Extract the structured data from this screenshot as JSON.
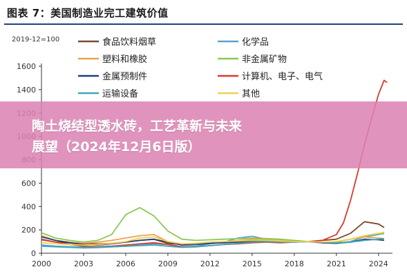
{
  "header": {
    "title": "图表 7：美国制造业完工建筑价值"
  },
  "banner": {
    "line1": "陶土烧结型透水砖，工艺革新与未来",
    "line2": "展望（2024年12月6日版）"
  },
  "chart_data": {
    "type": "line",
    "title": "图表 7：美国制造业完工建筑价值",
    "ylabel": "2019-12=100",
    "xlabel": "",
    "xlim": [
      2000,
      2024.6
    ],
    "ylim": [
      0,
      1600
    ],
    "x_ticks": [
      2000,
      2003,
      2006,
      2009,
      2012,
      2015,
      2018,
      2021,
      2024
    ],
    "y_ticks": [
      0,
      200,
      400,
      600,
      800,
      1000,
      1200,
      1400,
      1600
    ],
    "grid": false,
    "legend_position": "top",
    "colors": {
      "axis": "#333333",
      "banner": "#db82b2"
    },
    "series": [
      {
        "name": "食品饮料烟草",
        "color": "#7a4a2a",
        "points": [
          [
            2000,
            120
          ],
          [
            2001,
            95
          ],
          [
            2002,
            90
          ],
          [
            2003,
            85
          ],
          [
            2004,
            80
          ],
          [
            2005,
            85
          ],
          [
            2006,
            95
          ],
          [
            2007,
            110
          ],
          [
            2008,
            120
          ],
          [
            2009,
            85
          ],
          [
            2010,
            75
          ],
          [
            2011,
            80
          ],
          [
            2012,
            90
          ],
          [
            2013,
            95
          ],
          [
            2014,
            100
          ],
          [
            2015,
            110
          ],
          [
            2016,
            115
          ],
          [
            2017,
            105
          ],
          [
            2018,
            100
          ],
          [
            2019,
            100
          ],
          [
            2020,
            110
          ],
          [
            2021,
            120
          ],
          [
            2022,
            170
          ],
          [
            2023,
            270
          ],
          [
            2024,
            250
          ],
          [
            2024.4,
            220
          ]
        ]
      },
      {
        "name": "化学品",
        "color": "#5aa0d8",
        "points": [
          [
            2000,
            60
          ],
          [
            2001,
            55
          ],
          [
            2002,
            50
          ],
          [
            2003,
            45
          ],
          [
            2004,
            48
          ],
          [
            2005,
            55
          ],
          [
            2006,
            60
          ],
          [
            2007,
            70
          ],
          [
            2008,
            80
          ],
          [
            2009,
            75
          ],
          [
            2010,
            55
          ],
          [
            2011,
            60
          ],
          [
            2012,
            80
          ],
          [
            2013,
            95
          ],
          [
            2014,
            130
          ],
          [
            2015,
            145
          ],
          [
            2016,
            120
          ],
          [
            2017,
            100
          ],
          [
            2018,
            95
          ],
          [
            2019,
            100
          ],
          [
            2020,
            90
          ],
          [
            2021,
            85
          ],
          [
            2022,
            100
          ],
          [
            2023,
            140
          ],
          [
            2024,
            160
          ],
          [
            2024.4,
            170
          ]
        ]
      },
      {
        "name": "塑料和橡胶",
        "color": "#f0a050",
        "points": [
          [
            2000,
            150
          ],
          [
            2001,
            110
          ],
          [
            2002,
            95
          ],
          [
            2003,
            85
          ],
          [
            2004,
            95
          ],
          [
            2005,
            110
          ],
          [
            2006,
            130
          ],
          [
            2007,
            150
          ],
          [
            2008,
            160
          ],
          [
            2009,
            100
          ],
          [
            2010,
            80
          ],
          [
            2011,
            85
          ],
          [
            2012,
            95
          ],
          [
            2013,
            100
          ],
          [
            2014,
            110
          ],
          [
            2015,
            120
          ],
          [
            2016,
            115
          ],
          [
            2017,
            110
          ],
          [
            2018,
            105
          ],
          [
            2019,
            100
          ],
          [
            2020,
            95
          ],
          [
            2021,
            100
          ],
          [
            2022,
            120
          ],
          [
            2023,
            140
          ],
          [
            2024,
            130
          ],
          [
            2024.4,
            125
          ]
        ]
      },
      {
        "name": "非金属矿物",
        "color": "#8cc850",
        "points": [
          [
            2000,
            175
          ],
          [
            2001,
            130
          ],
          [
            2002,
            110
          ],
          [
            2003,
            95
          ],
          [
            2004,
            110
          ],
          [
            2005,
            160
          ],
          [
            2006,
            330
          ],
          [
            2007,
            390
          ],
          [
            2008,
            320
          ],
          [
            2009,
            190
          ],
          [
            2010,
            120
          ],
          [
            2011,
            110
          ],
          [
            2012,
            115
          ],
          [
            2013,
            120
          ],
          [
            2014,
            125
          ],
          [
            2015,
            130
          ],
          [
            2016,
            125
          ],
          [
            2017,
            120
          ],
          [
            2018,
            110
          ],
          [
            2019,
            100
          ],
          [
            2020,
            90
          ],
          [
            2021,
            95
          ],
          [
            2022,
            120
          ],
          [
            2023,
            150
          ],
          [
            2024,
            170
          ],
          [
            2024.4,
            165
          ]
        ]
      },
      {
        "name": "金属预制件",
        "color": "#1f3f7a",
        "points": [
          [
            2000,
            140
          ],
          [
            2001,
            110
          ],
          [
            2002,
            90
          ],
          [
            2003,
            75
          ],
          [
            2004,
            70
          ],
          [
            2005,
            80
          ],
          [
            2006,
            95
          ],
          [
            2007,
            110
          ],
          [
            2008,
            120
          ],
          [
            2009,
            95
          ],
          [
            2010,
            70
          ],
          [
            2011,
            75
          ],
          [
            2012,
            85
          ],
          [
            2013,
            90
          ],
          [
            2014,
            95
          ],
          [
            2015,
            100
          ],
          [
            2016,
            105
          ],
          [
            2017,
            100
          ],
          [
            2018,
            100
          ],
          [
            2019,
            100
          ],
          [
            2020,
            90
          ],
          [
            2021,
            85
          ],
          [
            2022,
            95
          ],
          [
            2023,
            120
          ],
          [
            2024,
            115
          ],
          [
            2024.4,
            110
          ]
        ]
      },
      {
        "name": "计算机、电子、电气",
        "color": "#d83a2a",
        "points": [
          [
            2000,
            115
          ],
          [
            2001,
            95
          ],
          [
            2002,
            75
          ],
          [
            2003,
            60
          ],
          [
            2004,
            55
          ],
          [
            2005,
            60
          ],
          [
            2006,
            70
          ],
          [
            2007,
            80
          ],
          [
            2008,
            90
          ],
          [
            2009,
            75
          ],
          [
            2010,
            55
          ],
          [
            2011,
            55
          ],
          [
            2012,
            65
          ],
          [
            2013,
            75
          ],
          [
            2014,
            80
          ],
          [
            2015,
            90
          ],
          [
            2016,
            95
          ],
          [
            2017,
            90
          ],
          [
            2018,
            95
          ],
          [
            2019,
            100
          ],
          [
            2020,
            110
          ],
          [
            2021,
            160
          ],
          [
            2021.5,
            260
          ],
          [
            2022,
            450
          ],
          [
            2022.5,
            680
          ],
          [
            2023,
            930
          ],
          [
            2023.5,
            1150
          ],
          [
            2024,
            1360
          ],
          [
            2024.4,
            1480
          ],
          [
            2024.6,
            1460
          ]
        ]
      },
      {
        "name": "运输设备",
        "color": "#3aa8b8",
        "points": [
          [
            2000,
            70
          ],
          [
            2001,
            60
          ],
          [
            2002,
            55
          ],
          [
            2003,
            50
          ],
          [
            2004,
            50
          ],
          [
            2005,
            55
          ],
          [
            2006,
            60
          ],
          [
            2007,
            65
          ],
          [
            2008,
            70
          ],
          [
            2009,
            60
          ],
          [
            2010,
            50
          ],
          [
            2011,
            55
          ],
          [
            2012,
            65
          ],
          [
            2013,
            75
          ],
          [
            2014,
            85
          ],
          [
            2015,
            95
          ],
          [
            2016,
            100
          ],
          [
            2017,
            95
          ],
          [
            2018,
            95
          ],
          [
            2019,
            100
          ],
          [
            2020,
            95
          ],
          [
            2021,
            90
          ],
          [
            2022,
            95
          ],
          [
            2023,
            110
          ],
          [
            2024,
            120
          ],
          [
            2024.4,
            125
          ]
        ]
      },
      {
        "name": "其他",
        "color": "#f2d050",
        "points": [
          [
            2000,
            90
          ],
          [
            2001,
            80
          ],
          [
            2002,
            75
          ],
          [
            2003,
            70
          ],
          [
            2004,
            75
          ],
          [
            2005,
            85
          ],
          [
            2006,
            100
          ],
          [
            2007,
            130
          ],
          [
            2008,
            140
          ],
          [
            2009,
            100
          ],
          [
            2010,
            80
          ],
          [
            2011,
            85
          ],
          [
            2012,
            95
          ],
          [
            2013,
            100
          ],
          [
            2014,
            105
          ],
          [
            2015,
            110
          ],
          [
            2016,
            110
          ],
          [
            2017,
            105
          ],
          [
            2018,
            100
          ],
          [
            2019,
            100
          ],
          [
            2020,
            95
          ],
          [
            2021,
            100
          ],
          [
            2022,
            120
          ],
          [
            2023,
            150
          ],
          [
            2024,
            170
          ],
          [
            2024.4,
            180
          ]
        ]
      }
    ]
  }
}
